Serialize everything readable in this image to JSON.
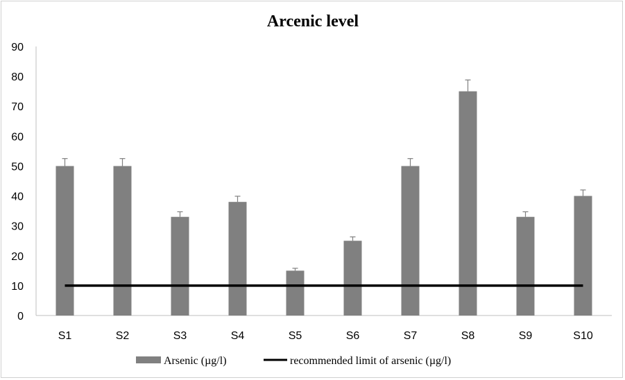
{
  "chart_data": {
    "type": "bar",
    "title": "Arcenic level",
    "xlabel": "",
    "ylabel": "",
    "categories": [
      "S1",
      "S2",
      "S3",
      "S4",
      "S5",
      "S6",
      "S7",
      "S8",
      "S9",
      "S10"
    ],
    "series": [
      {
        "name": "Arsenic (µg/l)",
        "type": "bar",
        "color": "#808080",
        "values": [
          50,
          50,
          33,
          38,
          15,
          25,
          50,
          75,
          33,
          40
        ],
        "error_plus": [
          2.5,
          2.5,
          1.7,
          1.9,
          0.8,
          1.3,
          2.5,
          3.8,
          1.7,
          2.0
        ]
      },
      {
        "name": "recommended limit of arsenic (µg/l)",
        "type": "line",
        "color": "#000000",
        "values": [
          10,
          10,
          10,
          10,
          10,
          10,
          10,
          10,
          10,
          10
        ]
      }
    ],
    "ylim": [
      0,
      90
    ],
    "yticks": [
      0,
      10,
      20,
      30,
      40,
      50,
      60,
      70,
      80,
      90
    ],
    "grid": false,
    "legend_position": "bottom"
  }
}
